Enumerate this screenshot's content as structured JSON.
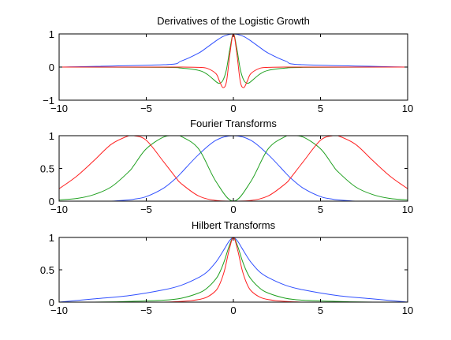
{
  "figure": {
    "background": "#ffffff",
    "series_colors": [
      "#3050ff",
      "#20a020",
      "#ff2020"
    ]
  },
  "chart_data": [
    {
      "type": "line",
      "title": "Derivatives of the Logistic Growth",
      "xlabel": "",
      "ylabel": "",
      "xlim": [
        -10,
        10
      ],
      "ylim": [
        -1,
        1
      ],
      "xticks": [
        -10,
        -5,
        0,
        5,
        10
      ],
      "xtick_labels": [
        "−10",
        "−5",
        "0",
        "5",
        "10"
      ],
      "yticks": [
        -1,
        0,
        1
      ],
      "ytick_labels": [
        "−1",
        "0",
        "1"
      ],
      "grid": false,
      "x": [
        -10,
        -4,
        -3,
        -2,
        -1.5,
        -1,
        -0.8,
        -0.6,
        -0.4,
        -0.2,
        0,
        0.2,
        0.4,
        0.6,
        0.8,
        1,
        1.5,
        2,
        3,
        4,
        10
      ],
      "series": [
        {
          "color": "#3050ff",
          "values": [
            0,
            0.07,
            0.18,
            0.42,
            0.6,
            0.79,
            0.86,
            0.92,
            0.96,
            0.99,
            1,
            0.99,
            0.96,
            0.92,
            0.86,
            0.79,
            0.6,
            0.42,
            0.18,
            0.07,
            0
          ]
        },
        {
          "color": "#20a020",
          "values": [
            0,
            -0.01,
            -0.03,
            -0.1,
            -0.22,
            -0.44,
            -0.49,
            -0.4,
            -0.08,
            0.55,
            1,
            0.55,
            -0.08,
            -0.4,
            -0.49,
            -0.44,
            -0.22,
            -0.1,
            -0.03,
            -0.01,
            0
          ]
        },
        {
          "color": "#ff2020",
          "values": [
            0,
            0,
            0,
            -0.01,
            -0.04,
            -0.2,
            -0.42,
            -0.62,
            -0.45,
            0.4,
            1,
            0.4,
            -0.45,
            -0.62,
            -0.42,
            -0.2,
            -0.04,
            -0.01,
            0,
            0,
            0
          ]
        }
      ]
    },
    {
      "type": "line",
      "title": "Fourier Transforms",
      "xlabel": "",
      "ylabel": "",
      "xlim": [
        -10,
        10
      ],
      "ylim": [
        0,
        1
      ],
      "xticks": [
        -10,
        -5,
        0,
        5,
        10
      ],
      "xtick_labels": [
        "−10",
        "−5",
        "0",
        "5",
        "10"
      ],
      "yticks": [
        0,
        0.5,
        1
      ],
      "ytick_labels": [
        "0",
        "0.5",
        "1"
      ],
      "grid": false,
      "x": [
        -10,
        -9,
        -8,
        -7,
        -6,
        -5.7,
        -5,
        -4,
        -3.3,
        -3,
        -2,
        -1,
        0,
        1,
        2,
        3,
        3.3,
        4,
        5,
        5.7,
        6,
        7,
        8,
        9,
        10
      ],
      "series": [
        {
          "color": "#3050ff",
          "values": [
            0,
            0,
            0,
            0,
            0.02,
            0.03,
            0.07,
            0.2,
            0.35,
            0.43,
            0.71,
            0.93,
            1,
            0.93,
            0.71,
            0.43,
            0.35,
            0.2,
            0.07,
            0.03,
            0.02,
            0,
            0,
            0,
            0
          ]
        },
        {
          "color": "#20a020",
          "values": [
            0.02,
            0.04,
            0.1,
            0.22,
            0.45,
            0.55,
            0.8,
            0.98,
            1,
            0.99,
            0.8,
            0.3,
            0,
            0.3,
            0.8,
            0.99,
            1,
            0.98,
            0.8,
            0.55,
            0.45,
            0.22,
            0.1,
            0.04,
            0.02
          ]
        },
        {
          "color": "#ff2020",
          "values": [
            0.19,
            0.38,
            0.62,
            0.87,
            1,
            1,
            0.93,
            0.6,
            0.36,
            0.27,
            0.08,
            0.01,
            0,
            0.01,
            0.08,
            0.27,
            0.36,
            0.6,
            0.93,
            1,
            1,
            0.87,
            0.62,
            0.38,
            0.19
          ]
        }
      ]
    },
    {
      "type": "line",
      "title": "Hilbert Transforms",
      "xlabel": "",
      "ylabel": "",
      "xlim": [
        -10,
        10
      ],
      "ylim": [
        0,
        1
      ],
      "xticks": [
        -10,
        -5,
        0,
        5,
        10
      ],
      "xtick_labels": [
        "−10",
        "−5",
        "0",
        "5",
        "10"
      ],
      "yticks": [
        0,
        0.5,
        1
      ],
      "ytick_labels": [
        "0",
        "0.5",
        "1"
      ],
      "grid": false,
      "x": [
        -10,
        -8,
        -6,
        -4,
        -3,
        -2,
        -1.5,
        -1,
        -0.75,
        -0.5,
        -0.25,
        0,
        0.25,
        0.5,
        0.75,
        1,
        1.5,
        2,
        3,
        4,
        6,
        8,
        10
      ],
      "series": [
        {
          "color": "#3050ff",
          "values": [
            0,
            0.05,
            0.1,
            0.19,
            0.26,
            0.38,
            0.47,
            0.62,
            0.72,
            0.83,
            0.94,
            1,
            0.94,
            0.83,
            0.72,
            0.62,
            0.47,
            0.38,
            0.26,
            0.19,
            0.1,
            0.05,
            0
          ]
        },
        {
          "color": "#20a020",
          "values": [
            0,
            0,
            0.01,
            0.03,
            0.06,
            0.14,
            0.22,
            0.36,
            0.48,
            0.65,
            0.86,
            1,
            0.86,
            0.65,
            0.48,
            0.36,
            0.22,
            0.14,
            0.06,
            0.03,
            0.01,
            0,
            0
          ]
        },
        {
          "color": "#ff2020",
          "values": [
            0,
            0,
            0,
            0,
            0.01,
            0.04,
            0.08,
            0.18,
            0.3,
            0.5,
            0.8,
            1,
            0.8,
            0.5,
            0.3,
            0.18,
            0.08,
            0.04,
            0.01,
            0,
            0,
            0,
            0
          ]
        }
      ]
    }
  ]
}
